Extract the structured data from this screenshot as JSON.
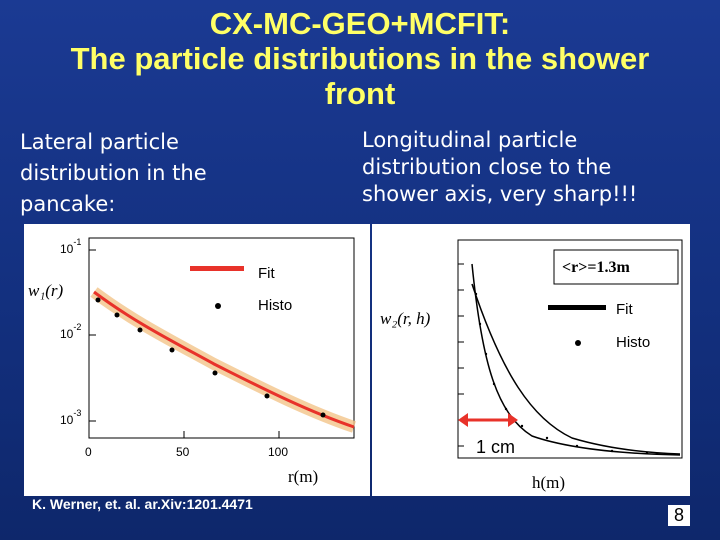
{
  "title": {
    "line1": "CX-MC-GEO+MCFIT:",
    "line2": "The particle distributions in the shower",
    "line3": "front"
  },
  "left_heading": {
    "line1": "Lateral particle",
    "line2": "distribution in the",
    "line3": "pancake:"
  },
  "right_heading": {
    "line1": "Longitudinal particle",
    "line2": "distribution close to the",
    "line3": "shower axis, very sharp!!!"
  },
  "left_plot": {
    "ylabel": "w₁(r)",
    "legend_fit": "Fit",
    "legend_histo": "Histo",
    "xlabel": "r(m)",
    "x_ticks": [
      "0",
      "50",
      "100"
    ],
    "y_tick_1": "10",
    "y_tick_1_exp": "-1",
    "y_tick_2": "10",
    "y_tick_2_exp": "-2",
    "y_tick_3": "10",
    "y_tick_3_exp": "-3",
    "colors": {
      "fit": "#e8322a",
      "band": "#f2c48a",
      "histo": "#000000"
    }
  },
  "right_plot": {
    "ylabel": "w₂(r, h)",
    "mean_label": "<r>=1.3m",
    "legend_fit": "Fit",
    "legend_histo": "Histo",
    "xlabel": "h(m)",
    "annotation": "1 cm",
    "colors": {
      "annotation": "#e8322a",
      "fit": "#000000"
    }
  },
  "credit": "K. Werner, et. al. ar.Xiv:1201.4471",
  "page_number": "8"
}
